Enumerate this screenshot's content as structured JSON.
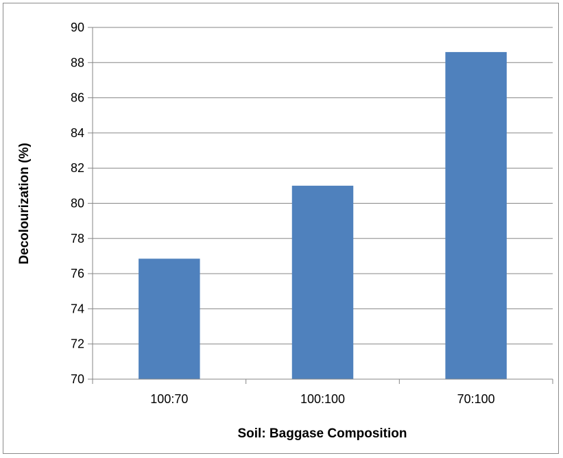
{
  "chart_data": {
    "type": "bar",
    "title": "",
    "xlabel": "Soil: Baggase Composition",
    "ylabel": "Decolourization (%)",
    "categories": [
      "100:70",
      "100:100",
      "70:100"
    ],
    "values": [
      76.85,
      81.0,
      88.6
    ],
    "ylim": [
      70,
      90
    ],
    "yticks": [
      70,
      72,
      74,
      76,
      78,
      80,
      82,
      84,
      86,
      88,
      90
    ],
    "grid": true,
    "legend": "none",
    "colors": {
      "bar": "#4F81BD",
      "grid": "#868686",
      "axis": "#868686",
      "border": "#8a8a8a"
    }
  }
}
